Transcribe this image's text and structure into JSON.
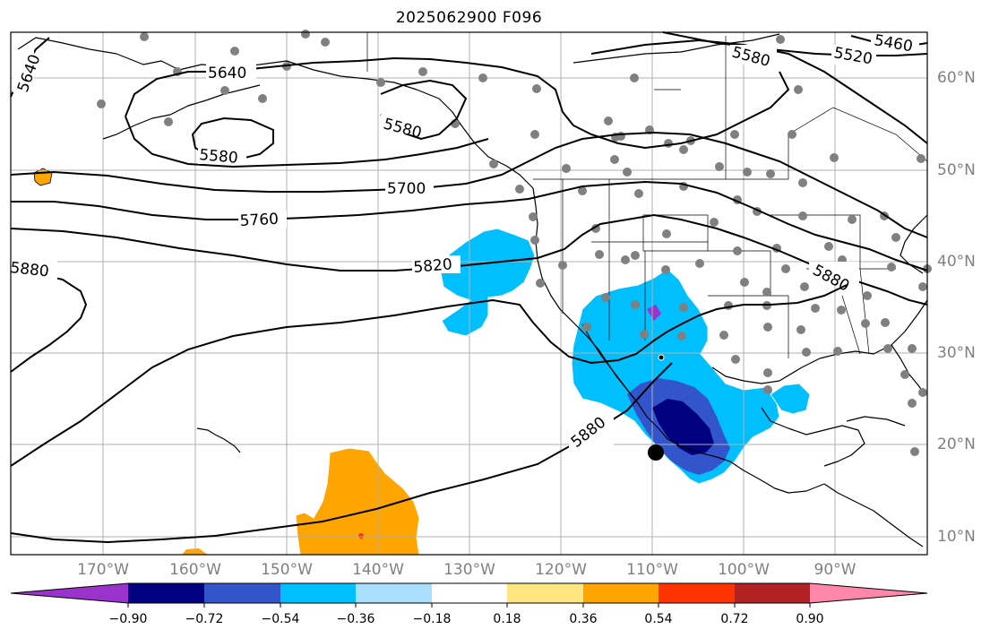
{
  "title": "2025062900 F096",
  "lat_labels": [
    "60°N",
    "50°N",
    "40°N",
    "30°N",
    "20°N",
    "10°N"
  ],
  "lon_labels": [
    "170°W",
    "160°W",
    "150°W",
    "140°W",
    "130°W",
    "120°W",
    "110°W",
    "100°W",
    "90°W"
  ],
  "contour_labels": [
    "5640",
    "5640",
    "5580",
    "5580",
    "5580",
    "5520",
    "5460",
    "5700",
    "5760",
    "5820",
    "5880",
    "5880",
    "5880"
  ],
  "colorbar": {
    "tick_labels": [
      "−0.90",
      "−0.72",
      "−0.54",
      "−0.36",
      "−0.18",
      "0.18",
      "0.36",
      "0.54",
      "0.72",
      "0.90"
    ],
    "colors": [
      "#9933cc",
      "#000080",
      "#3355cc",
      "#00bfff",
      "#aadeff",
      "#ffffff",
      "#ffe680",
      "#ffa500",
      "#ff3300",
      "#b22222",
      "#ff88aa"
    ]
  },
  "colors": {
    "negative_anomaly": "#00bfff",
    "strong_negative": "#000080",
    "positive_anomaly": "#ffa500",
    "station_marker": "#808080",
    "contour": "#000000"
  }
}
